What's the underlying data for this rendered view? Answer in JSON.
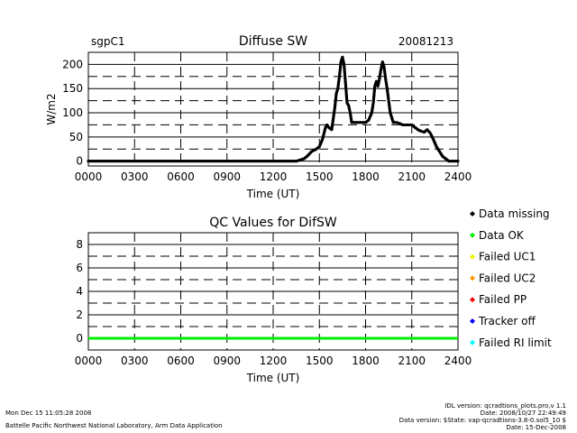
{
  "header": {
    "site": "sgpC1",
    "title": "Diffuse SW",
    "date": "20081213"
  },
  "chart_data": [
    {
      "type": "scatter",
      "title": "Diffuse SW",
      "xlabel": "Time (UT)",
      "ylabel": "W/m2",
      "xlim": [
        0,
        2400
      ],
      "ylim": [
        -10,
        225
      ],
      "x_ticks": [
        "0000",
        "0300",
        "0600",
        "0900",
        "1200",
        "1500",
        "1800",
        "2100",
        "2400"
      ],
      "y_ticks": [
        "0",
        "50",
        "100",
        "150",
        "200"
      ],
      "grid": "dashed",
      "series": [
        {
          "color": "#000000",
          "x": [
            0,
            300,
            600,
            900,
            1200,
            1350,
            1400,
            1420,
            1450,
            1480,
            1500,
            1520,
            1540,
            1550,
            1560,
            1580,
            1600,
            1610,
            1620,
            1630,
            1640,
            1650,
            1660,
            1670,
            1680,
            1690,
            1700,
            1710,
            1720,
            1740,
            1760,
            1780,
            1800,
            1820,
            1840,
            1850,
            1860,
            1870,
            1880,
            1890,
            1900,
            1910,
            1920,
            1930,
            1940,
            1950,
            1960,
            1970,
            1980,
            2000,
            2020,
            2040,
            2060,
            2080,
            2100,
            2120,
            2140,
            2160,
            2180,
            2200,
            2220,
            2240,
            2260,
            2280,
            2300,
            2320,
            2340,
            2360,
            2380,
            2400
          ],
          "y": [
            0,
            0,
            0,
            0,
            0,
            0,
            5,
            10,
            20,
            25,
            30,
            45,
            70,
            75,
            70,
            65,
            110,
            140,
            150,
            175,
            205,
            215,
            200,
            160,
            120,
            115,
            100,
            80,
            80,
            80,
            80,
            80,
            80,
            85,
            100,
            120,
            155,
            165,
            155,
            170,
            190,
            205,
            195,
            170,
            150,
            125,
            100,
            90,
            80,
            80,
            78,
            75,
            75,
            75,
            75,
            70,
            65,
            62,
            60,
            65,
            58,
            45,
            30,
            20,
            10,
            5,
            0,
            0,
            0,
            0
          ]
        }
      ]
    },
    {
      "type": "line",
      "title": "QC Values for DifSW",
      "xlabel": "Time (UT)",
      "xlim": [
        0,
        2400
      ],
      "ylim": [
        -1,
        9
      ],
      "x_ticks": [
        "0000",
        "0300",
        "0600",
        "0900",
        "1200",
        "1500",
        "1800",
        "2100",
        "2400"
      ],
      "y_ticks": [
        "0",
        "2",
        "4",
        "6",
        "8"
      ],
      "grid": "dashed",
      "series": [
        {
          "color": "#00ee00",
          "x": [
            0,
            2400
          ],
          "y": [
            0,
            0
          ]
        }
      ]
    }
  ],
  "legend": [
    {
      "label": "Data missing",
      "color": "#000000"
    },
    {
      "label": "Data OK",
      "color": "#00ee00"
    },
    {
      "label": "Failed UC1",
      "color": "#f0f000"
    },
    {
      "label": "Failed UC2",
      "color": "#ff9900"
    },
    {
      "label": "Failed PP",
      "color": "#ff0000"
    },
    {
      "label": "Tracker off",
      "color": "#0000ff"
    },
    {
      "label": "Failed RI limit",
      "color": "#00ffff"
    }
  ],
  "footer": {
    "timestamp": "Mon Dec 15 11:05:28 2008",
    "org": "Battelle Pacific Northwest National Laboratory, Arm Data Application",
    "idl_version": "IDL version: qcradtions_plots.pro,v 1.1",
    "idl_date": "Date: 2008/10/27 22:49:49",
    "data_version": "Data version: $State: vap-qcradtions-3.8-0.sol5_10 $",
    "data_date": "Date: 15-Dec-2008"
  }
}
